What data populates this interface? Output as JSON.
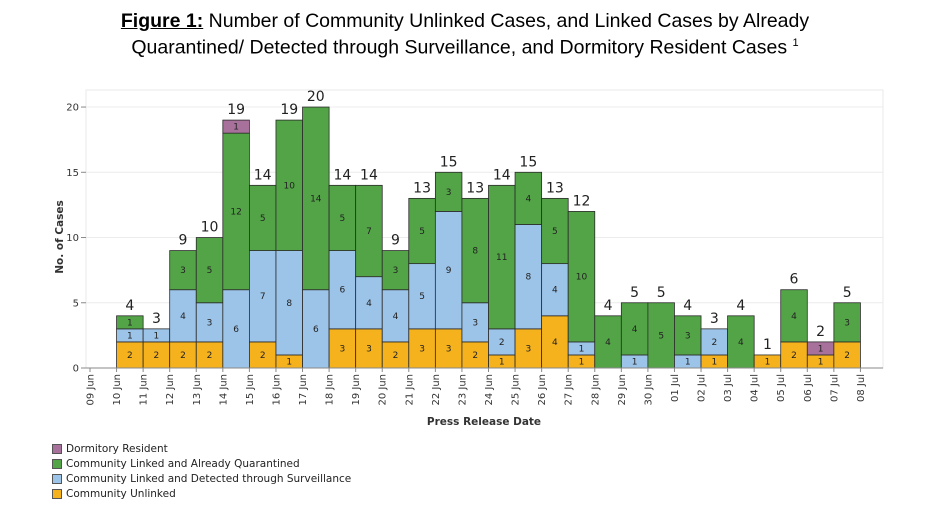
{
  "title": {
    "label": "Figure 1:",
    "line1": " Number of Community Unlinked Cases, and Linked Cases by Already",
    "line2": "Quarantined/ Detected through Surveillance, and Dormitory Resident Cases",
    "footnote": "1"
  },
  "chart_data": {
    "type": "bar",
    "stacked": true,
    "xlabel": "Press Release Date",
    "ylabel": "No. of Cases",
    "ylim": [
      0,
      21
    ],
    "yticks": [
      0,
      5,
      10,
      15,
      20
    ],
    "grid": true,
    "legend_position": "bottom-left",
    "categories": [
      "09 Jun",
      "10 Jun",
      "11 Jun",
      "12 Jun",
      "13 Jun",
      "14 Jun",
      "15 Jun",
      "16 Jun",
      "17 Jun",
      "18 Jun",
      "19 Jun",
      "20 Jun",
      "21 Jun",
      "22 Jun",
      "23 Jun",
      "24 Jun",
      "25 Jun",
      "26 Jun",
      "27 Jun",
      "28 Jun",
      "29 Jun",
      "30 Jun",
      "01 Jul",
      "02 Jul",
      "03 Jul",
      "04 Jul",
      "05 Jul",
      "06 Jul",
      "07 Jul",
      "08 Jul"
    ],
    "series": [
      {
        "name": "Community Unlinked",
        "color": "#f5b21d",
        "values": [
          null,
          2,
          2,
          2,
          2,
          0,
          2,
          1,
          0,
          3,
          3,
          2,
          3,
          3,
          2,
          1,
          3,
          4,
          1,
          0,
          0,
          0,
          0,
          1,
          0,
          1,
          2,
          1,
          2,
          null
        ]
      },
      {
        "name": "Community Linked and Detected through Surveillance",
        "color": "#9cc3e8",
        "values": [
          null,
          1,
          1,
          4,
          3,
          6,
          7,
          8,
          6,
          6,
          4,
          4,
          5,
          9,
          3,
          2,
          8,
          4,
          1,
          0,
          1,
          0,
          1,
          2,
          0,
          0,
          0,
          0,
          0,
          null
        ]
      },
      {
        "name": "Community Linked and Already Quarantined",
        "color": "#53a447",
        "values": [
          null,
          1,
          0,
          3,
          5,
          12,
          5,
          10,
          14,
          5,
          7,
          3,
          5,
          3,
          8,
          11,
          4,
          5,
          10,
          4,
          4,
          5,
          3,
          0,
          4,
          0,
          4,
          0,
          3,
          null
        ]
      },
      {
        "name": "Dormitory Resident",
        "color": "#a8719c",
        "values": [
          null,
          0,
          0,
          0,
          0,
          1,
          0,
          0,
          0,
          0,
          0,
          0,
          0,
          0,
          0,
          0,
          0,
          0,
          0,
          0,
          0,
          0,
          0,
          0,
          0,
          0,
          0,
          1,
          0,
          null
        ]
      }
    ],
    "totals": [
      null,
      4,
      3,
      9,
      10,
      19,
      14,
      19,
      20,
      14,
      14,
      9,
      13,
      15,
      13,
      14,
      15,
      13,
      12,
      4,
      5,
      5,
      4,
      3,
      4,
      1,
      6,
      2,
      5,
      null
    ]
  }
}
